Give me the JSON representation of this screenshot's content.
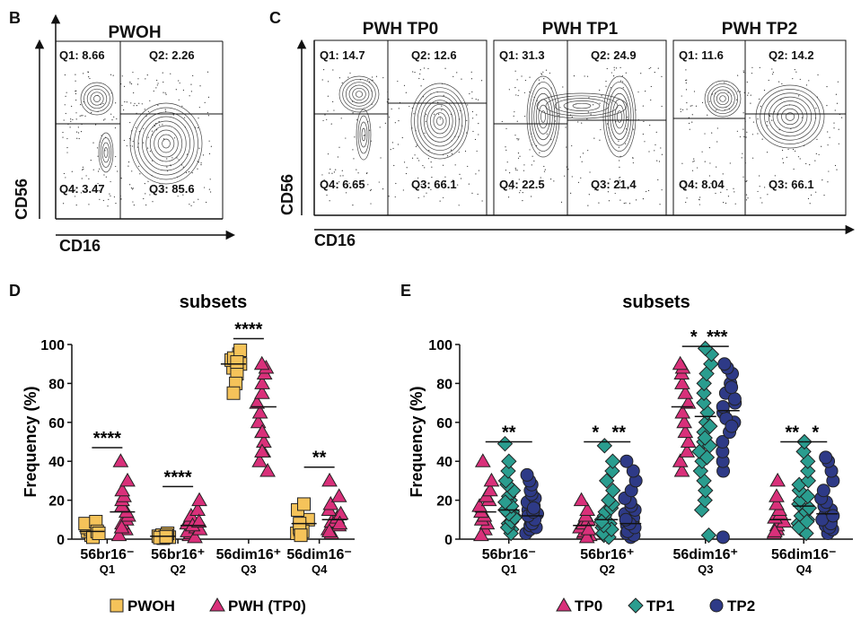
{
  "panels": {
    "B": {
      "letter": "B",
      "title": "PWOH",
      "xlabel": "CD16",
      "ylabel": "CD56",
      "quadrants": {
        "q1": "Q1: 8.66",
        "q2": "Q2: 2.26",
        "q3": "Q3: 85.6",
        "q4": "Q4: 3.47"
      }
    },
    "C": {
      "letter": "C",
      "xlabel": "CD16",
      "ylabel": "CD56",
      "plots": [
        {
          "title": "PWH TP0",
          "q1": "Q1: 14.7",
          "q2": "Q2: 12.6",
          "q3": "Q3: 66.1",
          "q4": "Q4: 6.65"
        },
        {
          "title": "PWH TP1",
          "q1": "Q1: 31.3",
          "q2": "Q2: 24.9",
          "q3": "Q3: 21.4",
          "q4": "Q4: 22.5"
        },
        {
          "title": "PWH TP2",
          "q1": "Q1: 11.6",
          "q2": "Q2: 14.2",
          "q3": "Q3: 66.1",
          "q4": "Q4: 8.04"
        }
      ]
    },
    "D": {
      "letter": "D"
    },
    "E": {
      "letter": "E"
    }
  },
  "colors": {
    "pwoh": "#F5C35A",
    "pwh_tp0": "#D9307A",
    "tp1": "#2A9D8F",
    "tp2": "#2E3A87"
  },
  "chart_data": [
    {
      "id": "D",
      "type": "scatter",
      "title": "subsets",
      "ylabel": "Frequency (%)",
      "ylim": [
        0,
        100
      ],
      "yticks": [
        0,
        20,
        40,
        60,
        80,
        100
      ],
      "categories": [
        "56br16⁻",
        "56br16⁺",
        "56dim16⁺",
        "56dim16⁻"
      ],
      "sublabels": [
        "Q1",
        "Q2",
        "Q3",
        "Q4"
      ],
      "series": [
        {
          "name": "PWOH",
          "marker": "square",
          "color": "#F5C35A",
          "values": [
            [
              2,
              3,
              4,
              5,
              6,
              8,
              9,
              1,
              4,
              3
            ],
            [
              1,
              2,
              0.5,
              1.5,
              2,
              3,
              1,
              2,
              0.8,
              1.2
            ],
            [
              88,
              92,
              95,
              90,
              85,
              80,
              93,
              97,
              91,
              75
            ],
            [
              3,
              5,
              7,
              10,
              15,
              18,
              4,
              6,
              8,
              2
            ]
          ],
          "means": [
            4,
            1.5,
            90,
            8
          ]
        },
        {
          "name": "PWH (TP0)",
          "marker": "triangle",
          "color": "#D9307A",
          "values": [
            [
              5,
              8,
              10,
              12,
              14,
              17,
              20,
              22,
              25,
              30,
              40,
              2,
              6
            ],
            [
              2,
              3,
              4,
              6,
              8,
              10,
              12,
              15,
              20,
              1,
              5,
              7,
              9
            ],
            [
              35,
              40,
              45,
              50,
              55,
              60,
              65,
              70,
              75,
              80,
              85,
              88,
              90,
              45,
              55
            ],
            [
              3,
              5,
              7,
              9,
              11,
              13,
              15,
              18,
              22,
              30,
              4,
              8
            ]
          ],
          "means": [
            14,
            7,
            68,
            10
          ]
        }
      ],
      "significance": [
        {
          "category": 0,
          "label": "****",
          "y": 47
        },
        {
          "category": 1,
          "label": "****",
          "y": 27
        },
        {
          "category": 2,
          "label": "****",
          "y": 103
        },
        {
          "category": 3,
          "label": "**",
          "y": 37
        }
      ],
      "legend": [
        "PWOH",
        "PWH (TP0)"
      ]
    },
    {
      "id": "E",
      "type": "scatter",
      "title": "subsets",
      "ylabel": "Frequency (%)",
      "ylim": [
        0,
        100
      ],
      "yticks": [
        0,
        20,
        40,
        60,
        80,
        100
      ],
      "categories": [
        "56br16⁻",
        "56br16⁺",
        "56dim16⁺",
        "56dim16⁻"
      ],
      "sublabels": [
        "Q1",
        "Q2",
        "Q3",
        "Q4"
      ],
      "series": [
        {
          "name": "TP0",
          "marker": "triangle",
          "color": "#D9307A",
          "values": [
            [
              5,
              8,
              10,
              12,
              14,
              17,
              20,
              22,
              25,
              30,
              40,
              2
            ],
            [
              2,
              3,
              4,
              6,
              8,
              10,
              12,
              15,
              20,
              1,
              5
            ],
            [
              35,
              40,
              45,
              50,
              55,
              60,
              65,
              70,
              75,
              80,
              85,
              88,
              90
            ],
            [
              3,
              5,
              7,
              9,
              11,
              13,
              15,
              18,
              22,
              30,
              4
            ]
          ],
          "means": [
            14,
            7,
            68,
            10
          ]
        },
        {
          "name": "TP1",
          "marker": "diamond",
          "color": "#2A9D8F",
          "values": [
            [
              5,
              8,
              10,
              12,
              14,
              16,
              18,
              20,
              22,
              25,
              28,
              30,
              35,
              40,
              49,
              3,
              6,
              9,
              11,
              13,
              15,
              17,
              19
            ],
            [
              2,
              4,
              6,
              8,
              10,
              12,
              14,
              16,
              18,
              20,
              25,
              30,
              35,
              40,
              48,
              1,
              3,
              5,
              7,
              9
            ],
            [
              2,
              15,
              20,
              25,
              30,
              35,
              40,
              45,
              50,
              55,
              60,
              65,
              70,
              75,
              80,
              85,
              90,
              95,
              98,
              42,
              48,
              52,
              58
            ],
            [
              5,
              8,
              10,
              12,
              14,
              16,
              18,
              20,
              22,
              25,
              28,
              30,
              35,
              40,
              45,
              50,
              3,
              6,
              9
            ]
          ],
          "means": [
            15,
            10,
            63,
            17
          ]
        },
        {
          "name": "TP2",
          "marker": "circle",
          "color": "#2E3A87",
          "values": [
            [
              3,
              5,
              7,
              9,
              11,
              13,
              15,
              17,
              19,
              21,
              23,
              25,
              28,
              30,
              33,
              6,
              8,
              10,
              12,
              14,
              16
            ],
            [
              1,
              3,
              5,
              7,
              9,
              11,
              13,
              15,
              17,
              19,
              21,
              25,
              30,
              35,
              40,
              2,
              4,
              6,
              8,
              10
            ],
            [
              1,
              35,
              40,
              45,
              50,
              55,
              60,
              65,
              70,
              75,
              80,
              85,
              88,
              90,
              62,
              58,
              68,
              72,
              78
            ],
            [
              3,
              5,
              7,
              9,
              11,
              13,
              15,
              17,
              19,
              21,
              25,
              30,
              35,
              40,
              42,
              6,
              8,
              10,
              12
            ]
          ],
          "means": [
            12,
            8,
            66,
            13
          ]
        }
      ],
      "significance": [
        {
          "from": 0,
          "to": 2,
          "category": 0,
          "label": "**",
          "y": 50
        },
        {
          "from": 0,
          "to": 1,
          "category": 1,
          "label": "*",
          "y": 50
        },
        {
          "from": 1,
          "to": 2,
          "category": 1,
          "label": "**",
          "y": 50
        },
        {
          "from": 0,
          "to": 1,
          "category": 2,
          "label": "*",
          "y": 99
        },
        {
          "from": 1,
          "to": 2,
          "category": 2,
          "label": "***",
          "y": 99
        },
        {
          "from": 0,
          "to": 1,
          "category": 3,
          "label": "**",
          "y": 50
        },
        {
          "from": 1,
          "to": 2,
          "category": 3,
          "label": "*",
          "y": 50
        }
      ],
      "legend": [
        "TP0",
        "TP1",
        "TP2"
      ]
    }
  ]
}
